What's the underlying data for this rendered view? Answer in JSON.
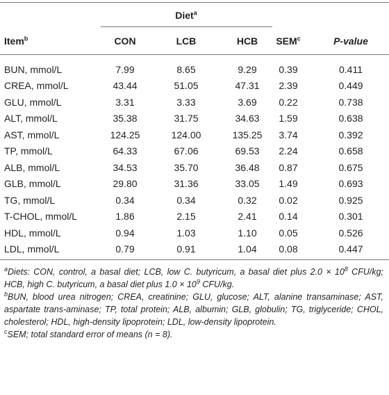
{
  "table": {
    "group_header": {
      "text": "Diet",
      "sup": "a"
    },
    "columns": [
      {
        "text": "Item",
        "sup": "b"
      },
      {
        "text": "CON"
      },
      {
        "text": "LCB"
      },
      {
        "text": "HCB"
      },
      {
        "text": "SEM",
        "sup": "c"
      },
      {
        "text": "P-value"
      }
    ],
    "rows": [
      [
        "BUN, mmol/L",
        "7.99",
        "8.65",
        "9.29",
        "0.39",
        "0.411"
      ],
      [
        "CREA, mmol/L",
        "43.44",
        "51.05",
        "47.31",
        "2.39",
        "0.449"
      ],
      [
        "GLU, mmol/L",
        "3.31",
        "3.33",
        "3.69",
        "0.22",
        "0.738"
      ],
      [
        "ALT, mmol/L",
        "35.38",
        "31.75",
        "34.63",
        "1.59",
        "0.638"
      ],
      [
        "AST, mmol/L",
        "124.25",
        "124.00",
        "135.25",
        "3.74",
        "0.392"
      ],
      [
        "TP, mmol/L",
        "64.33",
        "67.06",
        "69.53",
        "2.24",
        "0.658"
      ],
      [
        "ALB, mmol/L",
        "34.53",
        "35.70",
        "36.48",
        "0.87",
        "0.675"
      ],
      [
        "GLB, mmol/L",
        "29.80",
        "31.36",
        "33.05",
        "1.49",
        "0.693"
      ],
      [
        "TG, mmol/L",
        "0.34",
        "0.34",
        "0.32",
        "0.02",
        "0.925"
      ],
      [
        "T-CHOL, mmol/L",
        "1.86",
        "2.15",
        "2.41",
        "0.14",
        "0.301"
      ],
      [
        "HDL, mmol/L",
        "0.94",
        "1.03",
        "1.10",
        "0.05",
        "0.526"
      ],
      [
        "LDL, mmol/L",
        "0.79",
        "0.91",
        "1.04",
        "0.08",
        "0.447"
      ]
    ]
  },
  "footnotes": [
    {
      "mark": "a",
      "parts": [
        "Diets: CON, control, a basal diet; LCB, low C. butyricum, a basal diet plus 2.0 × 10",
        "8",
        " CFU/kg; HCB, high C. butyricum, a basal diet plus 1.0 × 10",
        "9",
        " CFU/kg."
      ]
    },
    {
      "mark": "b",
      "parts": [
        "BUN, blood urea nitrogen; CREA, creatinine; GLU, glucose; ALT, alanine transaminase; AST, aspartate trans-aminase; TP, total protein; ALB, albumin; GLB, globulin; TG, triglyceride; CHOL, cholesterol; HDL, high-density lipoprotein; LDL, low-density lipoprotein."
      ]
    },
    {
      "mark": "c",
      "parts": [
        "SEM; total standard error of means (n = 8)."
      ]
    }
  ]
}
